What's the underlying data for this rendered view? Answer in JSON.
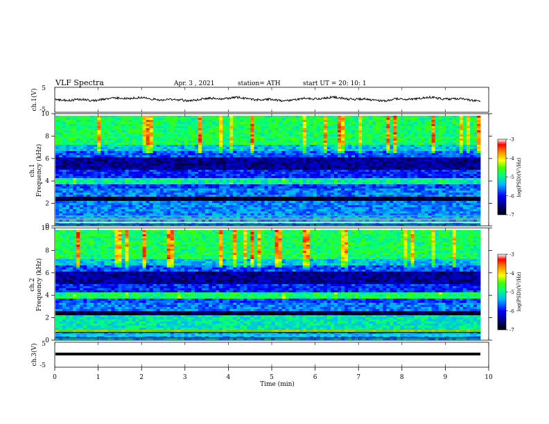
{
  "header": {
    "title": "VLF Spectra",
    "date": "Apr. 3 , 2021",
    "station": "station= ATH",
    "start": "start UT = 20: 10: 1"
  },
  "chart_data": [
    {
      "type": "line",
      "name": "channel-1-waveform",
      "ylabel": "ch.1(V)",
      "ylim": [
        -5,
        5
      ],
      "yticks": [
        "5",
        "-5"
      ],
      "xlim": [
        0,
        10
      ]
    },
    {
      "type": "heatmap",
      "name": "channel-1-spectrogram",
      "ylabel_channel": "ch.1",
      "ylabel": "Frequency (kHz)",
      "ylim": [
        0,
        10
      ],
      "yticks": [
        "10",
        "8",
        "6",
        "4",
        "2",
        "0"
      ],
      "xlim": [
        0,
        9.8
      ],
      "colorbar": {
        "label": "log(PSD)(V²/Hz)",
        "ticks": [
          "-3",
          "-4",
          "-5",
          "-6",
          "-7"
        ],
        "range": [
          -7,
          -3
        ]
      }
    },
    {
      "type": "heatmap",
      "name": "channel-2-spectrogram",
      "ylabel_channel": "ch.2",
      "ylabel": "Frequency (kHz)",
      "ylim": [
        0,
        10
      ],
      "yticks": [
        "10",
        "8",
        "6",
        "4",
        "2",
        "0"
      ],
      "xlim": [
        0,
        9.8
      ],
      "colorbar": {
        "label": "log(PSD)(V²/Hz)",
        "ticks": [
          "-3",
          "-4",
          "-5",
          "-6",
          "-7"
        ],
        "range": [
          -7,
          -3
        ]
      }
    },
    {
      "type": "line",
      "name": "channel-3-waveform",
      "ylabel": "ch.3(V)",
      "ylim": [
        -5,
        5
      ],
      "yticks": [
        "5",
        "-5"
      ],
      "xlim": [
        0,
        10
      ]
    }
  ],
  "xaxis": {
    "label": "Time (min)",
    "ticks": [
      "0",
      "1",
      "2",
      "3",
      "4",
      "5",
      "6",
      "7",
      "8",
      "9",
      "10"
    ],
    "range": [
      0,
      10
    ]
  },
  "colors": {
    "axis": "#000000",
    "background": "#ffffff"
  }
}
